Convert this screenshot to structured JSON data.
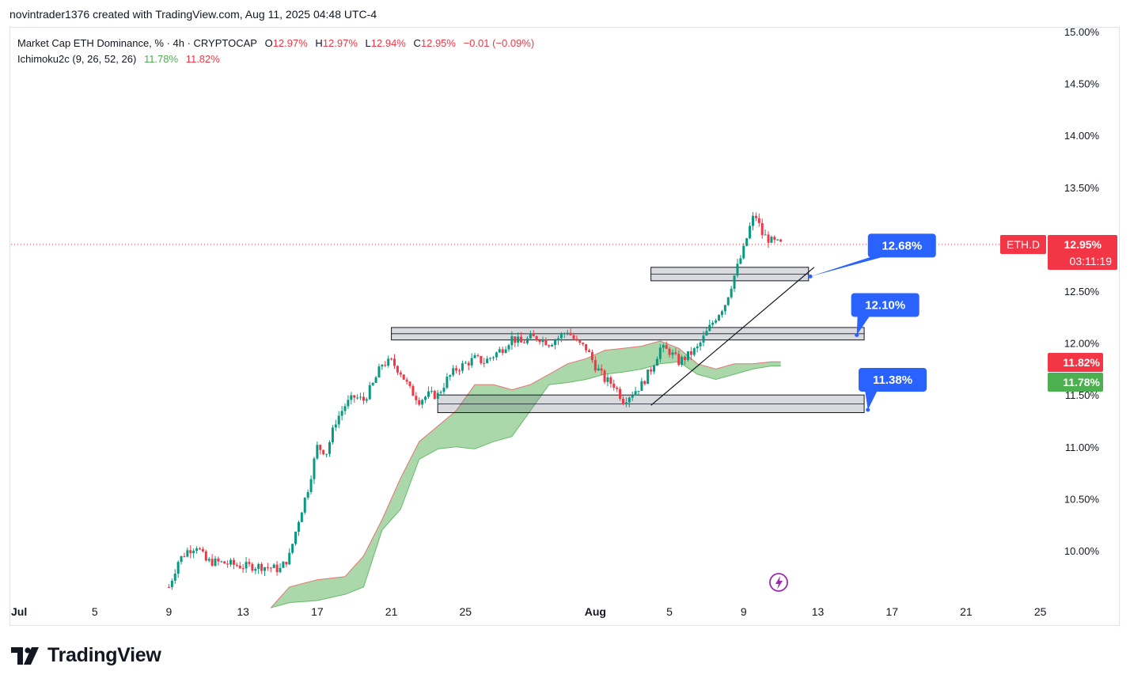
{
  "header": {
    "title": "novintrader1376 created with TradingView.com, Aug 11, 2025 04:48 UTC-4"
  },
  "legend": {
    "symbol_desc": "Market Cap ETH Dominance, % · 4h · CRYPTOCAP",
    "o_label": "O",
    "o_value": "12.97%",
    "h_label": "H",
    "h_value": "12.97%",
    "l_label": "L",
    "l_value": "12.94%",
    "c_label": "C",
    "c_value": "12.95%",
    "change": "−0.01 (−0.09%)",
    "ichimoku": "Ichimoku2c (9, 26, 52, 26)",
    "ichimoku_v1": "11.78%",
    "ichimoku_v2": "11.82%"
  },
  "price_tag": {
    "symbol": "ETH.D",
    "price": "12.95%",
    "countdown": "03:11:19",
    "ichi_top": "11.82%",
    "ichi_bottom": "11.78%"
  },
  "footer": {
    "brand": "TradingView"
  },
  "colors": {
    "up": "#089981",
    "down": "#f23645",
    "cloud": "#a5d6a7",
    "cloud_edge": "#e57373",
    "callout": "#2962ff"
  },
  "chart_data": {
    "type": "candlestick",
    "symbol": "ETH.D",
    "timeframe": "4h",
    "y_axis": {
      "ticks": [
        "10.00%",
        "10.50%",
        "11.00%",
        "11.50%",
        "12.00%",
        "12.50%",
        "13.50%",
        "14.00%",
        "14.50%",
        "15.00%"
      ],
      "range": [
        9.6,
        15.0
      ]
    },
    "x_axis": {
      "ticks": [
        "Jul",
        "5",
        "9",
        "13",
        "17",
        "21",
        "25",
        "Aug",
        "5",
        "9",
        "13",
        "17",
        "21",
        "25"
      ]
    },
    "last_price": 12.95,
    "close_path": [
      [
        9.0,
        9.65
      ],
      [
        9.5,
        9.9
      ],
      [
        10.0,
        10.0
      ],
      [
        10.5,
        10.05
      ],
      [
        11.0,
        9.9
      ],
      [
        12.0,
        9.88
      ],
      [
        13.0,
        9.85
      ],
      [
        14.0,
        9.85
      ],
      [
        15.0,
        9.82
      ],
      [
        15.5,
        9.95
      ],
      [
        16.0,
        10.3
      ],
      [
        16.5,
        10.6
      ],
      [
        17.0,
        11.0
      ],
      [
        17.5,
        10.95
      ],
      [
        18.0,
        11.25
      ],
      [
        18.5,
        11.4
      ],
      [
        19.0,
        11.48
      ],
      [
        19.5,
        11.45
      ],
      [
        20.0,
        11.6
      ],
      [
        20.5,
        11.8
      ],
      [
        21.0,
        11.82
      ],
      [
        21.5,
        11.72
      ],
      [
        22.0,
        11.55
      ],
      [
        22.5,
        11.45
      ],
      [
        23.0,
        11.5
      ],
      [
        23.5,
        11.5
      ],
      [
        24.0,
        11.65
      ],
      [
        24.5,
        11.75
      ],
      [
        25.0,
        11.8
      ],
      [
        25.5,
        11.85
      ],
      [
        26.0,
        11.82
      ],
      [
        26.5,
        11.88
      ],
      [
        27.0,
        11.95
      ],
      [
        27.5,
        12.05
      ],
      [
        28.0,
        12.0
      ],
      [
        28.5,
        12.05
      ],
      [
        29.0,
        12.05
      ],
      [
        29.5,
        12.0
      ],
      [
        30.0,
        12.05
      ],
      [
        30.5,
        12.12
      ],
      [
        31.0,
        12.0
      ],
      [
        31.5,
        11.95
      ],
      [
        32.0,
        11.78
      ],
      [
        32.5,
        11.65
      ],
      [
        33.0,
        11.6
      ],
      [
        33.5,
        11.45
      ],
      [
        34.0,
        11.52
      ],
      [
        34.5,
        11.6
      ],
      [
        35.0,
        11.75
      ],
      [
        35.5,
        11.95
      ],
      [
        36.0,
        11.92
      ],
      [
        36.5,
        11.82
      ],
      [
        37.0,
        11.88
      ],
      [
        37.5,
        11.95
      ],
      [
        38.0,
        12.1
      ],
      [
        38.5,
        12.25
      ],
      [
        39.0,
        12.38
      ],
      [
        39.5,
        12.65
      ],
      [
        40.0,
        12.9
      ],
      [
        40.3,
        13.1
      ],
      [
        40.6,
        13.25
      ],
      [
        41.0,
        13.05
      ],
      [
        41.5,
        12.98
      ],
      [
        42.0,
        12.95
      ]
    ],
    "ichimoku_cloud": {
      "span_a": [
        [
          14.5,
          9.45
        ],
        [
          15.5,
          9.65
        ],
        [
          17.0,
          9.72
        ],
        [
          18.5,
          9.75
        ],
        [
          19.5,
          9.95
        ],
        [
          20.5,
          10.3
        ],
        [
          21.5,
          10.7
        ],
        [
          22.5,
          11.05
        ],
        [
          23.5,
          11.2
        ],
        [
          24.5,
          11.35
        ],
        [
          25.5,
          11.6
        ],
        [
          26.5,
          11.6
        ],
        [
          27.5,
          11.55
        ],
        [
          28.5,
          11.6
        ],
        [
          29.5,
          11.7
        ],
        [
          30.5,
          11.8
        ],
        [
          31.5,
          11.85
        ],
        [
          32.5,
          11.93
        ],
        [
          33.5,
          11.95
        ],
        [
          34.5,
          11.97
        ],
        [
          35.5,
          12.02
        ],
        [
          36.5,
          11.95
        ],
        [
          37.5,
          11.8
        ],
        [
          38.5,
          11.75
        ],
        [
          39.5,
          11.8
        ],
        [
          40.5,
          11.8
        ],
        [
          41.5,
          11.82
        ],
        [
          42.0,
          11.82
        ]
      ],
      "span_b": [
        [
          14.5,
          9.45
        ],
        [
          15.5,
          9.5
        ],
        [
          17.0,
          9.52
        ],
        [
          18.5,
          9.58
        ],
        [
          19.5,
          9.65
        ],
        [
          20.5,
          10.2
        ],
        [
          21.5,
          10.4
        ],
        [
          22.5,
          10.88
        ],
        [
          23.5,
          10.98
        ],
        [
          24.5,
          11.0
        ],
        [
          25.5,
          10.98
        ],
        [
          26.5,
          11.05
        ],
        [
          27.5,
          11.1
        ],
        [
          28.5,
          11.35
        ],
        [
          29.5,
          11.6
        ],
        [
          30.5,
          11.62
        ],
        [
          31.5,
          11.65
        ],
        [
          32.5,
          11.7
        ],
        [
          33.5,
          11.72
        ],
        [
          34.5,
          11.75
        ],
        [
          35.5,
          11.8
        ],
        [
          36.5,
          11.82
        ],
        [
          37.5,
          11.7
        ],
        [
          38.5,
          11.65
        ],
        [
          39.5,
          11.7
        ],
        [
          40.5,
          11.75
        ],
        [
          41.5,
          11.78
        ],
        [
          42.0,
          11.78
        ]
      ]
    },
    "zones": [
      {
        "from": 23.5,
        "to": 46.5,
        "low": 11.33,
        "high": 11.5
      },
      {
        "from": 21.0,
        "to": 46.5,
        "low": 12.03,
        "high": 12.15
      },
      {
        "from": 35.0,
        "to": 43.5,
        "low": 12.6,
        "high": 12.73
      }
    ],
    "trendline": {
      "x1": 35.0,
      "y1": 11.4,
      "x2": 43.8,
      "y2": 12.73
    },
    "callouts": [
      {
        "label": "11.38%",
        "value": 11.38
      },
      {
        "label": "12.10%",
        "value": 12.1
      },
      {
        "label": "12.68%",
        "value": 12.68
      }
    ]
  }
}
